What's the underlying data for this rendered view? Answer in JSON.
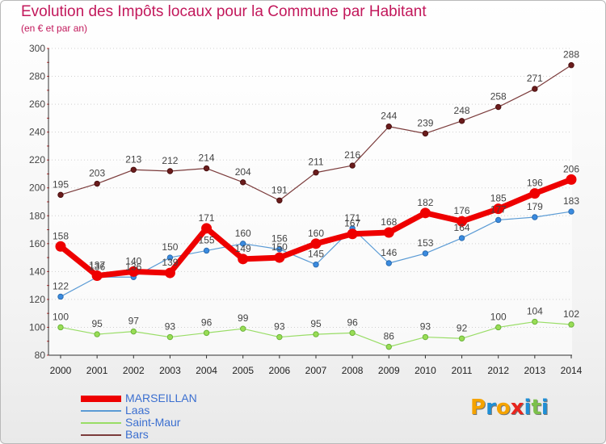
{
  "chart_data": {
    "type": "line",
    "title": "Evolution des Impôts locaux pour la Commune par Habitant",
    "subtitle": "(en € et par an)",
    "x": [
      "2000",
      "2001",
      "2002",
      "2003",
      "2004",
      "2005",
      "2006",
      "2007",
      "2008",
      "2009",
      "2010",
      "2011",
      "2012",
      "2013",
      "2014"
    ],
    "ylim": [
      80,
      300
    ],
    "yticks": [
      80,
      100,
      120,
      140,
      160,
      180,
      200,
      220,
      240,
      260,
      280,
      300
    ],
    "series": [
      {
        "name": "MARSEILLAN",
        "color": "#ee0000",
        "values": [
          158,
          137,
          140,
          139,
          171,
          149,
          150,
          160,
          167,
          168,
          182,
          176,
          185,
          196,
          206
        ],
        "labels": [
          "158",
          "137",
          "140",
          "139",
          "171",
          "149",
          "150",
          "160",
          "167",
          "168",
          "182",
          "176",
          "185",
          "196",
          "206"
        ]
      },
      {
        "name": "Laas",
        "color": "#5b9bd5",
        "values": [
          122,
          136,
          136,
          150,
          155,
          160,
          156,
          145,
          171,
          146,
          153,
          164,
          177,
          179,
          183
        ],
        "labels": [
          "122",
          "136",
          "136",
          "150",
          "155",
          "160",
          "156",
          "145",
          "171",
          "146",
          "153",
          "164",
          "177",
          "179",
          "183"
        ]
      },
      {
        "name": "Saint-Maur",
        "color": "#99dd66",
        "values": [
          100,
          95,
          97,
          93,
          96,
          99,
          93,
          95,
          96,
          86,
          93,
          92,
          100,
          104,
          102
        ],
        "labels": [
          "100",
          "95",
          "97",
          "93",
          "96",
          "99",
          "93",
          "95",
          "96",
          "86",
          "93",
          "92",
          "100",
          "104",
          "102"
        ]
      },
      {
        "name": "Bars",
        "color": "#7b3b3b",
        "values": [
          195,
          203,
          213,
          212,
          214,
          204,
          191,
          211,
          216,
          244,
          239,
          248,
          258,
          271,
          288
        ],
        "labels": [
          "195",
          "203",
          "213",
          "212",
          "214",
          "204",
          "191",
          "211",
          "216",
          "244",
          "239",
          "248",
          "258",
          "271",
          "288"
        ]
      }
    ]
  },
  "logo": {
    "letters": [
      "P",
      "r",
      "o",
      "x",
      "i",
      "t",
      "i"
    ],
    "colors": [
      "#f5a300",
      "#1f8fd6",
      "#f5a300",
      "#e8251e",
      "#1f8fd6",
      "#7cc04b",
      "#1f8fd6"
    ]
  }
}
